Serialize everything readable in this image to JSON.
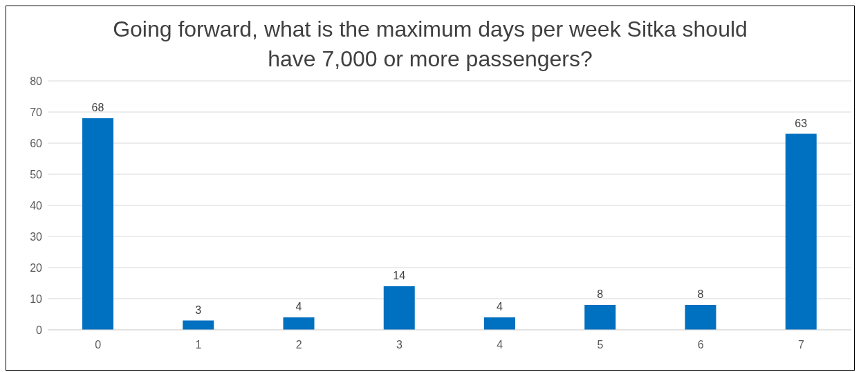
{
  "chart_data": {
    "type": "bar",
    "title": "Going forward, what is the maximum days per week Sitka should have 7,000 or more passengers?",
    "categories": [
      "0",
      "1",
      "2",
      "3",
      "4",
      "5",
      "6",
      "7"
    ],
    "values": [
      68,
      3,
      4,
      14,
      4,
      8,
      8,
      63
    ],
    "color": "#0070c0",
    "ylim": [
      0,
      80
    ],
    "yticks": [
      0,
      10,
      20,
      30,
      40,
      50,
      60,
      70,
      80
    ],
    "grid": "y",
    "data_labels": true
  }
}
